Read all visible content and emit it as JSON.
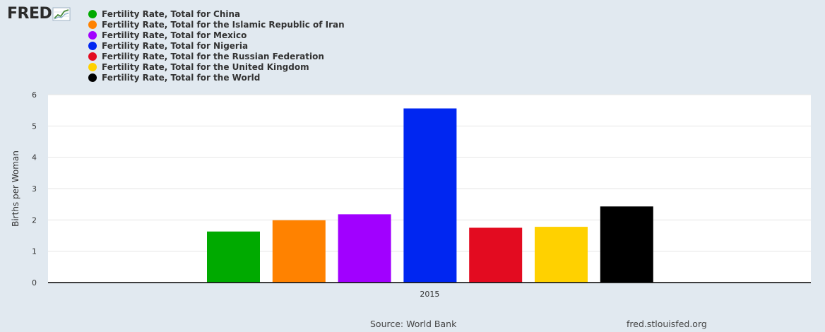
{
  "header": {
    "logo_text": "FRED",
    "logo_icon": "line-chart-icon"
  },
  "colors": {
    "background": "#e1e9f0",
    "plot_background": "#ffffff",
    "gridline": "#e6e6e6",
    "axis": "#000000"
  },
  "chart_data": {
    "type": "bar",
    "title": "",
    "xlabel": "",
    "ylabel": "Births per Woman",
    "categories": [
      "2015"
    ],
    "ylim": [
      0,
      6
    ],
    "yticks": [
      0,
      1,
      2,
      3,
      4,
      5,
      6
    ],
    "grid": true,
    "legend_position": "top-left",
    "series": [
      {
        "name": "Fertility Rate, Total for China",
        "color": "#00aa00",
        "values": [
          1.63
        ]
      },
      {
        "name": "Fertility Rate, Total for the Islamic Republic of Iran",
        "color": "#ff8200",
        "values": [
          1.99
        ]
      },
      {
        "name": "Fertility Rate, Total for Mexico",
        "color": "#a100ff",
        "values": [
          2.18
        ]
      },
      {
        "name": "Fertility Rate, Total for Nigeria",
        "color": "#0026f1",
        "values": [
          5.56
        ]
      },
      {
        "name": "Fertility Rate, Total for the Russian Federation",
        "color": "#e30b20",
        "values": [
          1.75
        ]
      },
      {
        "name": "Fertility Rate, Total for the United Kingdom",
        "color": "#ffd100",
        "values": [
          1.78
        ]
      },
      {
        "name": "Fertility Rate, Total for the World",
        "color": "#000000",
        "values": [
          2.43
        ]
      }
    ]
  },
  "footer": {
    "source": "Source: World Bank",
    "site": "fred.stlouisfed.org"
  }
}
